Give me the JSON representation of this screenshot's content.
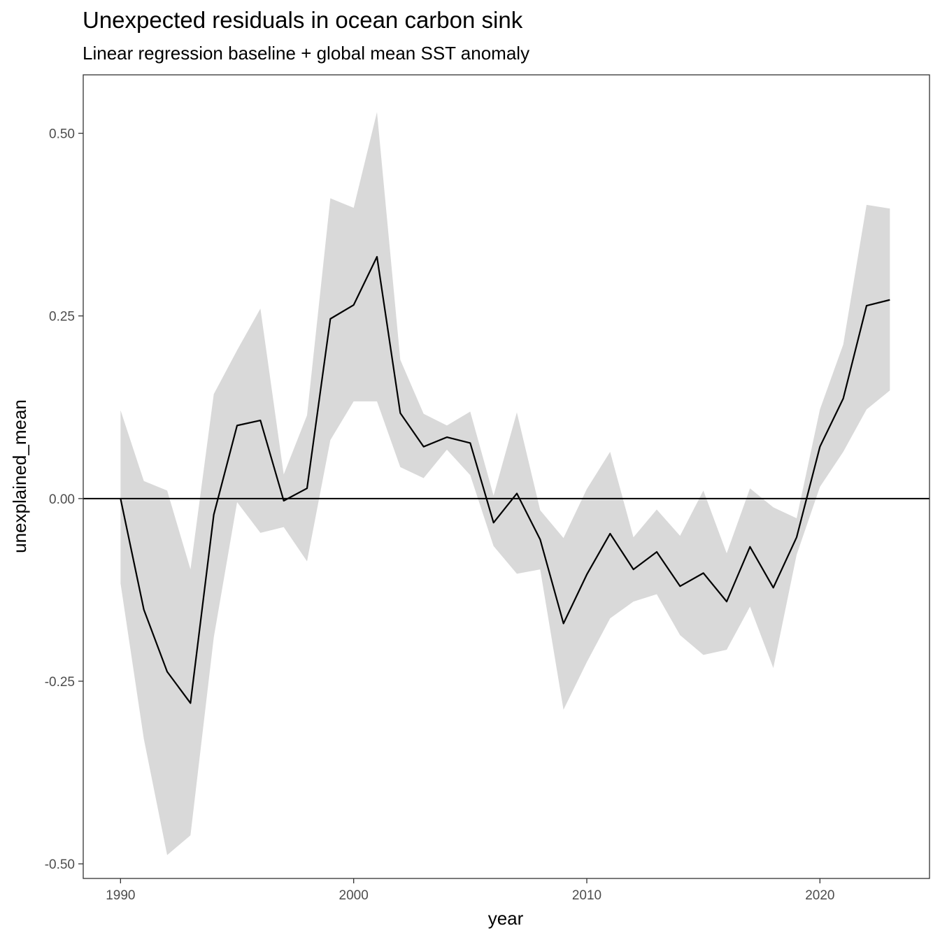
{
  "chart_data": {
    "type": "line",
    "title": "Unexpected residuals in ocean carbon sink",
    "subtitle": "Linear regression baseline + global mean SST anomaly",
    "xlabel": "year",
    "ylabel": "unexplained_mean",
    "xlim": [
      1988.4,
      2024.7
    ],
    "ylim": [
      -0.52,
      0.58
    ],
    "x_ticks": [
      1990,
      2000,
      2010,
      2020
    ],
    "x_tick_labels": [
      "1990",
      "2000",
      "2010",
      "2020"
    ],
    "y_ticks": [
      0.5,
      0.25,
      0.0,
      -0.25,
      -0.5
    ],
    "y_tick_labels": [
      "0.50",
      "0.25",
      "0.00",
      "-0.25",
      "-0.50"
    ],
    "reference_line_y": 0.0,
    "grid": false,
    "colors": {
      "line": "#000000",
      "ribbon": "#d9d9d9",
      "frame": "#333333"
    },
    "x": [
      1990,
      1991,
      1992,
      1993,
      1994,
      1995,
      1996,
      1997,
      1998,
      1999,
      2000,
      2001,
      2002,
      2003,
      2004,
      2005,
      2006,
      2007,
      2008,
      2009,
      2010,
      2011,
      2012,
      2013,
      2014,
      2015,
      2016,
      2017,
      2018,
      2019,
      2020,
      2021,
      2022,
      2023
    ],
    "series": [
      {
        "type": "line",
        "values": [
          0.0,
          -0.152,
          -0.237,
          -0.28,
          -0.022,
          0.1,
          0.107,
          -0.003,
          0.014,
          0.246,
          0.265,
          0.331,
          0.117,
          0.071,
          0.084,
          0.076,
          -0.033,
          0.007,
          -0.056,
          -0.171,
          -0.104,
          -0.048,
          -0.097,
          -0.073,
          -0.12,
          -0.102,
          -0.141,
          -0.066,
          -0.122,
          -0.053,
          0.071,
          0.137,
          0.264,
          0.272
        ]
      },
      {
        "type": "ribbon",
        "upper": [
          0.121,
          0.024,
          0.011,
          -0.097,
          0.143,
          0.203,
          0.26,
          0.033,
          0.114,
          0.411,
          0.398,
          0.529,
          0.19,
          0.116,
          0.1,
          0.119,
          0.004,
          0.118,
          -0.016,
          -0.054,
          0.013,
          0.064,
          -0.053,
          -0.015,
          -0.051,
          0.011,
          -0.075,
          0.014,
          -0.012,
          -0.027,
          0.122,
          0.211,
          0.402,
          0.397
        ],
        "lower": [
          -0.116,
          -0.329,
          -0.488,
          -0.461,
          -0.19,
          -0.005,
          -0.047,
          -0.039,
          -0.086,
          0.08,
          0.133,
          0.133,
          0.043,
          0.028,
          0.067,
          0.032,
          -0.065,
          -0.103,
          -0.097,
          -0.289,
          -0.224,
          -0.164,
          -0.141,
          -0.131,
          -0.187,
          -0.214,
          -0.207,
          -0.148,
          -0.232,
          -0.077,
          0.016,
          0.064,
          0.122,
          0.148
        ]
      }
    ]
  }
}
